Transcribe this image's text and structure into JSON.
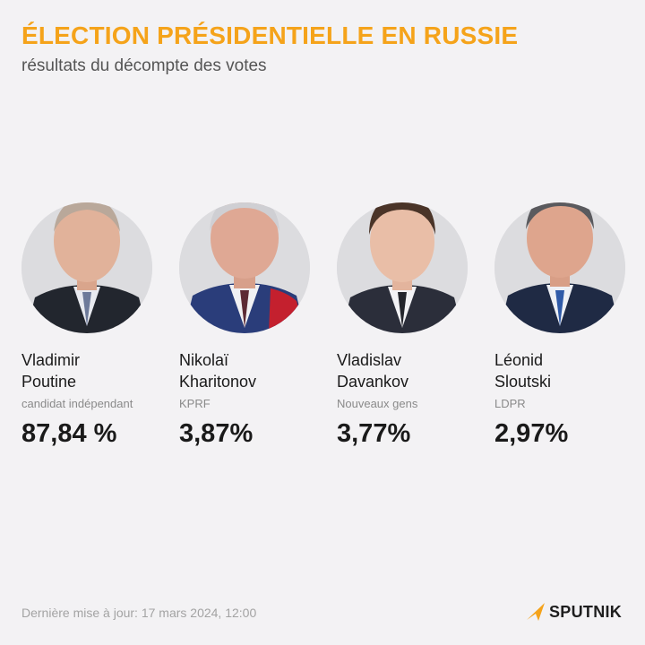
{
  "header": {
    "title": "ÉLECTION PRÉSIDENTIELLE EN RUSSIE",
    "subtitle": "résultats du décompte des votes"
  },
  "candidates": [
    {
      "first_name": "Vladimir",
      "last_name": "Poutine",
      "party": "candidat indépendant",
      "percent": "87,84 %"
    },
    {
      "first_name": "Nikolaï",
      "last_name": "Kharitonov",
      "party": "KPRF",
      "percent": "3,87%"
    },
    {
      "first_name": "Vladislav",
      "last_name": "Davankov",
      "party": "Nouveaux gens",
      "percent": "3,77%"
    },
    {
      "first_name": "Léonid",
      "last_name": "Sloutski",
      "party": "LDPR",
      "percent": "2,97%"
    }
  ],
  "footer": {
    "updated": "Dernière mise à jour: 17 mars 2024, 12:00",
    "brand": "SPUTNIK"
  },
  "colors": {
    "accent": "#f5a31a",
    "background": "#f3f2f4"
  }
}
